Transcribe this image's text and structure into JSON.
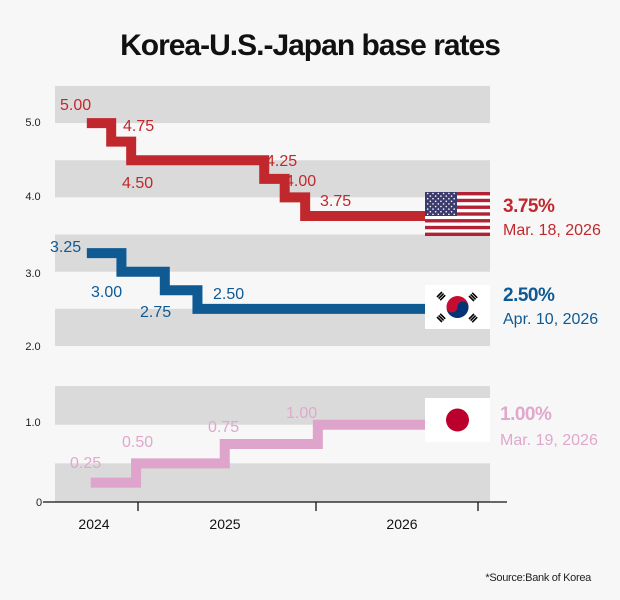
{
  "chart_data": {
    "type": "line",
    "step": true,
    "title": "Korea-U.S.-Japan base rates",
    "source": "*Source:Bank of Korea",
    "y_ticks": [
      "5.0",
      "4.0",
      "3.0",
      "2.0",
      "1.0",
      "0"
    ],
    "y_axis_broken_between": [
      1.5,
      2.0
    ],
    "ylim": [
      0,
      5.5
    ],
    "x_ticks": [
      "2024",
      "2025",
      "2026"
    ],
    "grid": "alternating horizontal bands",
    "series": [
      {
        "key": "us",
        "color": "#c0282d",
        "label_color": "#c0282d",
        "flag_icon": "us-flag",
        "current": "3.75%",
        "current_date": "Mar. 18, 2026",
        "points": [
          {
            "date": "2024-09-18",
            "value": 5.0,
            "label": "5.00"
          },
          {
            "date": "2024-11-07",
            "value": 4.75,
            "label": "4.75"
          },
          {
            "date": "2024-12-18",
            "value": 4.5,
            "label": "4.50"
          },
          {
            "date": "2025-09-17",
            "value": 4.25,
            "label": "4.25"
          },
          {
            "date": "2025-10-29",
            "value": 4.0,
            "label": "4.00"
          },
          {
            "date": "2025-12-10",
            "value": 3.75,
            "label": "3.75"
          }
        ]
      },
      {
        "key": "kr",
        "color": "#0f5a93",
        "label_color": "#0f5a93",
        "flag_icon": "korea-flag",
        "current": "2.50%",
        "current_date": "Apr. 10, 2026",
        "points": [
          {
            "date": "2024-09-18",
            "value": 3.25,
            "label": "3.25"
          },
          {
            "date": "2024-11-28",
            "value": 3.0,
            "label": "3.00"
          },
          {
            "date": "2025-02-25",
            "value": 2.75,
            "label": "2.75"
          },
          {
            "date": "2025-05-03",
            "value": 2.5,
            "label": "2.50"
          }
        ]
      },
      {
        "key": "jp",
        "color": "#dea4cb",
        "label_color": "#e0a8cd",
        "flag_icon": "japan-flag",
        "current": "1.00%",
        "current_date": "Mar. 19, 2026",
        "points": [
          {
            "date": "2024-09-26",
            "value": 0.25,
            "label": "0.25"
          },
          {
            "date": "2024-12-28",
            "value": 0.5,
            "label": "0.50"
          },
          {
            "date": "2025-06-28",
            "value": 0.75,
            "label": "0.75"
          },
          {
            "date": "2026-01-05",
            "value": 1.0,
            "label": "1.00"
          }
        ]
      }
    ]
  }
}
